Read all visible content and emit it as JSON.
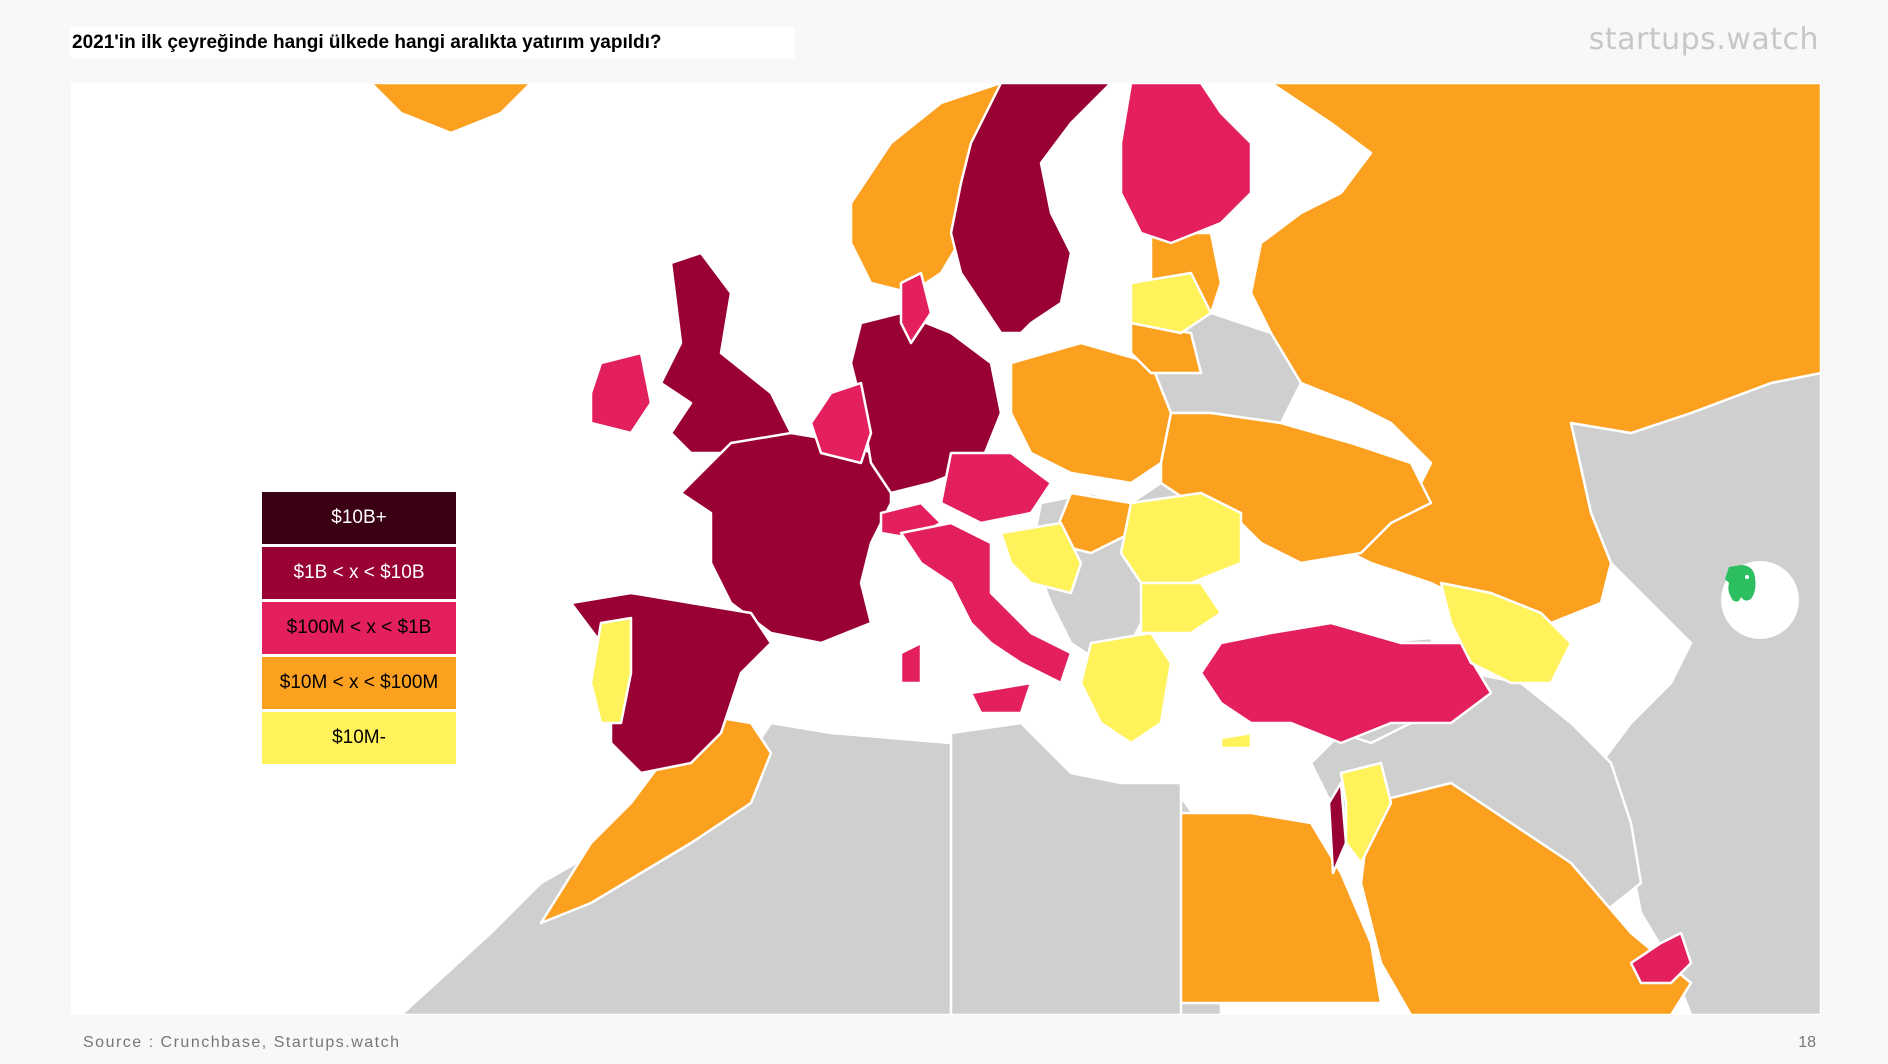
{
  "title": "2021'in ilk çeyreğinde hangi ülkede hangi aralıkta yatırım yapıldı?",
  "brand": "startups.watch",
  "legend": [
    {
      "label": "$10B+",
      "color": "#3a0014",
      "text_color": "#ffffff"
    },
    {
      "label": "$1B < x < $10B",
      "color": "#990033",
      "text_color": "#ffffff"
    },
    {
      "label": "$100M < x < $1B",
      "color": "#e41f5e",
      "text_color": "#000000"
    },
    {
      "label": "$10M < x < $100M",
      "color": "#fca020",
      "text_color": "#000000"
    },
    {
      "label": "$10M-",
      "color": "#fff25a",
      "text_color": "#000000"
    }
  ],
  "map": {
    "no_data_color": "#cfcfcf",
    "sea_color": "#ffffff",
    "border_color": "#ffffff"
  },
  "app_icon": "evernote-elephant-icon",
  "footer": {
    "source": "Source : Crunchbase, Startups.watch",
    "page": "18"
  }
}
